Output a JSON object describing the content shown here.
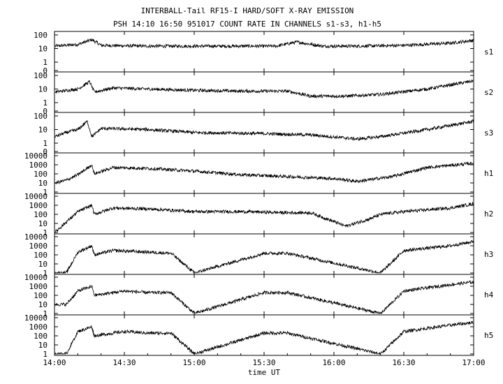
{
  "chart_data": {
    "type": "line",
    "title": "INTERBALL-Tail RF15-I HARD/SOFT X-RAY EMISSION",
    "subtitle": "PSH 14:10 16:50 951017  COUNT RATE IN CHANNELS s1-s3, h1-h5",
    "xlabel": "time UT",
    "x_ticks": [
      "14:00",
      "14:30",
      "15:00",
      "15:30",
      "16:00",
      "16:30",
      "17:00"
    ],
    "xlim": [
      "14:00",
      "17:00"
    ],
    "grid": false,
    "panels": [
      {
        "name": "s1",
        "yscale": "log",
        "ytick_labels": [
          "0",
          "1",
          "10",
          "100"
        ],
        "ylim": [
          0,
          100
        ],
        "x": [
          "14:00",
          "14:10",
          "14:16",
          "14:20",
          "14:40",
          "15:00",
          "15:20",
          "15:35",
          "15:44",
          "15:55",
          "16:10",
          "16:30",
          "16:50",
          "17:00"
        ],
        "y": [
          15,
          20,
          45,
          17,
          15,
          15,
          15,
          15,
          30,
          15,
          15,
          17,
          25,
          40
        ]
      },
      {
        "name": "s2",
        "yscale": "log",
        "ytick_labels": [
          "0",
          "1",
          "10",
          "100"
        ],
        "ylim": [
          0,
          100
        ],
        "x": [
          "14:00",
          "14:10",
          "14:15",
          "14:17",
          "14:25",
          "14:40",
          "15:00",
          "15:20",
          "15:40",
          "15:50",
          "16:05",
          "16:20",
          "16:40",
          "17:00"
        ],
        "y": [
          6,
          10,
          35,
          6,
          12,
          10,
          8,
          7,
          7,
          3,
          3,
          4,
          10,
          40
        ]
      },
      {
        "name": "s3",
        "yscale": "log",
        "ytick_labels": [
          "0",
          "1",
          "10",
          "100"
        ],
        "ylim": [
          0,
          100
        ],
        "x": [
          "14:00",
          "14:05",
          "14:10",
          "14:14",
          "14:16",
          "14:20",
          "14:40",
          "15:00",
          "15:30",
          "15:50",
          "16:10",
          "16:20",
          "16:40",
          "17:00"
        ],
        "y": [
          3,
          6,
          10,
          40,
          3,
          12,
          10,
          6,
          5,
          4,
          2,
          3,
          10,
          40
        ]
      },
      {
        "name": "h1",
        "yscale": "log",
        "ytick_labels": [
          "1",
          "10",
          "100",
          "1000",
          "10000"
        ],
        "ylim": [
          1,
          10000
        ],
        "x": [
          "14:00",
          "14:05",
          "14:10",
          "14:16",
          "14:17",
          "14:25",
          "14:40",
          "15:00",
          "15:20",
          "15:40",
          "16:00",
          "16:10",
          "16:25",
          "16:40",
          "17:00"
        ],
        "y": [
          10,
          20,
          80,
          1000,
          100,
          500,
          400,
          200,
          80,
          50,
          30,
          15,
          50,
          500,
          1500
        ]
      },
      {
        "name": "h2",
        "yscale": "log",
        "ytick_labels": [
          "1",
          "10",
          "100",
          "1000",
          "10000"
        ],
        "ylim": [
          1,
          10000
        ],
        "x": [
          "14:00",
          "14:10",
          "14:16",
          "14:17",
          "14:25",
          "14:40",
          "15:00",
          "15:20",
          "15:40",
          "15:50",
          "16:05",
          "16:15",
          "16:20",
          "16:30",
          "16:50",
          "17:00"
        ],
        "y": [
          1,
          200,
          1000,
          100,
          500,
          400,
          200,
          200,
          150,
          150,
          5,
          30,
          100,
          200,
          500,
          1500
        ]
      },
      {
        "name": "h3",
        "yscale": "log",
        "ytick_labels": [
          "1",
          "10",
          "100",
          "1000",
          "10000"
        ],
        "ylim": [
          1,
          10000
        ],
        "x": [
          "14:00",
          "14:05",
          "14:10",
          "14:16",
          "14:17",
          "14:25",
          "14:40",
          "14:50",
          "15:00",
          "15:30",
          "15:40",
          "16:20",
          "16:30",
          "16:50",
          "17:00"
        ],
        "y": [
          1,
          1,
          200,
          1000,
          100,
          300,
          200,
          150,
          1,
          150,
          150,
          1,
          300,
          1000,
          3000
        ]
      },
      {
        "name": "h4",
        "yscale": "log",
        "ytick_labels": [
          "1",
          "10",
          "100",
          "1000",
          "10000"
        ],
        "ylim": [
          1,
          10000
        ],
        "x": [
          "14:00",
          "14:05",
          "14:10",
          "14:16",
          "14:17",
          "14:30",
          "14:40",
          "14:50",
          "15:00",
          "15:30",
          "15:40",
          "16:20",
          "16:30",
          "16:50",
          "17:00"
        ],
        "y": [
          10,
          10,
          300,
          1000,
          100,
          300,
          200,
          200,
          1,
          200,
          200,
          1,
          300,
          1500,
          3000
        ]
      },
      {
        "name": "h5",
        "yscale": "log",
        "ytick_labels": [
          "1",
          "10",
          "100",
          "1000",
          "10000"
        ],
        "ylim": [
          1,
          10000
        ],
        "x": [
          "14:00",
          "14:05",
          "14:10",
          "14:16",
          "14:17",
          "14:30",
          "14:40",
          "14:50",
          "15:00",
          "15:30",
          "15:40",
          "16:20",
          "16:30",
          "16:50",
          "17:00"
        ],
        "y": [
          1,
          1,
          300,
          1000,
          100,
          300,
          200,
          200,
          1,
          200,
          200,
          1,
          300,
          1500,
          3000
        ]
      }
    ]
  }
}
